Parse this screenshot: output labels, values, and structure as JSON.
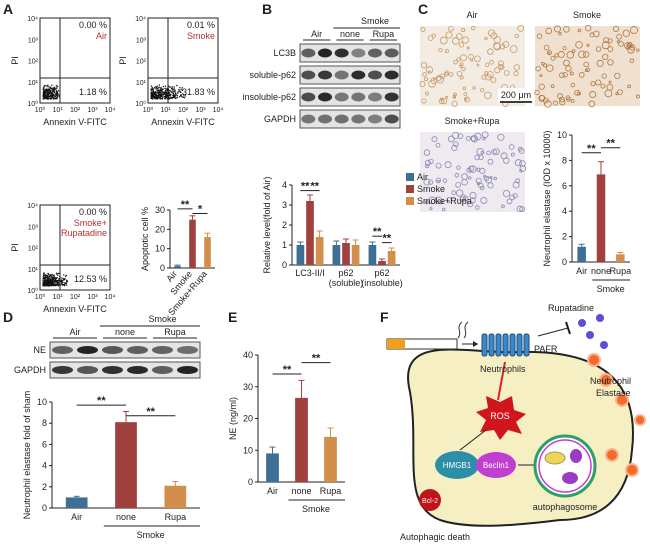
{
  "panel_letters": [
    "A",
    "B",
    "C",
    "D",
    "E",
    "F"
  ],
  "flow": {
    "y_label": "PI",
    "x_label": "Annexin V-FITC",
    "ticks": [
      "10⁰",
      "10¹",
      "10²",
      "10³",
      "10⁴"
    ],
    "plots": [
      {
        "upper_right": "0.00 %",
        "lower_right": "1.18 %",
        "label": [
          "Air"
        ]
      },
      {
        "upper_right": "0.01 %",
        "lower_right": "31.83 %",
        "label": [
          "Smoke"
        ]
      },
      {
        "upper_right": "0.00 %",
        "lower_right": "12.53 %",
        "label": [
          "Smoke+",
          "Rupatadine"
        ]
      }
    ]
  },
  "blot_b": {
    "group": "Smoke",
    "lanes": [
      "Air",
      "none",
      "Rupa"
    ],
    "rows": [
      "LC3B",
      "soluble-p62",
      "insoluble-p62",
      "GAPDH"
    ]
  },
  "blot_d": {
    "group": "Smoke",
    "lanes": [
      "Air",
      "none",
      "Rupa"
    ],
    "rows": [
      "NE",
      "GAPDH"
    ]
  },
  "micrographs": {
    "labels": [
      "Air",
      "Smoke",
      "Smoke+Rupa"
    ],
    "scale": "200 μm"
  },
  "diagram": {
    "drug": "Rupatadine",
    "receptor": "PAFR",
    "cell": "Neutrophils",
    "elastase": [
      "Neutrophil",
      "Elastase"
    ],
    "ros": "ROS",
    "hmgb1": "HMGB1",
    "beclin": "Beclin1",
    "bcl": "Bcl-2",
    "autophagosome": "autophagosome",
    "outcome": "Autophagic death"
  },
  "chart_data": [
    {
      "type": "bar",
      "y_label": "Apoptotic cell %",
      "categories": [
        "Air",
        "Smoke",
        "Smoke+Rupa"
      ],
      "values": [
        1,
        25,
        16
      ],
      "errors": [
        0.5,
        2,
        2
      ],
      "colors": [
        "#3f6f94",
        "#a0403f",
        "#d28e4b"
      ],
      "ylim": [
        0,
        30
      ],
      "yticks": [
        0,
        10,
        20,
        30
      ],
      "annotations": [
        "**",
        "*"
      ]
    },
    {
      "type": "bar",
      "y_label": "Relative level(fold of Air)",
      "categories": [
        [
          "LC3-II/I"
        ],
        [
          "p62",
          "(soluble)"
        ],
        [
          "p62",
          "(insoluble)"
        ]
      ],
      "series": [
        {
          "name": "Air",
          "color": "#3f6f94",
          "values": [
            1,
            1,
            1
          ],
          "errors": [
            0.15,
            0.2,
            0.15
          ]
        },
        {
          "name": "Smoke",
          "color": "#a0403f",
          "values": [
            3.2,
            1.1,
            0.2
          ],
          "errors": [
            0.3,
            0.2,
            0.1
          ]
        },
        {
          "name": "Smoke+Rupa",
          "color": "#d28e4b",
          "values": [
            1.4,
            1.0,
            0.7
          ],
          "errors": [
            0.3,
            0.25,
            0.15
          ]
        }
      ],
      "ylim": [
        0,
        4
      ],
      "yticks": [
        0,
        1,
        2,
        3,
        4
      ],
      "annotations": [
        "**",
        "**",
        "**",
        "**"
      ]
    },
    {
      "type": "bar",
      "y_label": "Neutrophil elastase (IOD x 10000)",
      "categories": [
        "Air",
        "none",
        "Rupa"
      ],
      "group_label": "Smoke",
      "values": [
        1.2,
        6.9,
        0.6
      ],
      "errors": [
        0.2,
        1.0,
        0.15
      ],
      "colors": [
        "#3f6f94",
        "#a0403f",
        "#d28e4b"
      ],
      "ylim": [
        0,
        10
      ],
      "yticks": [
        0,
        2,
        4,
        6,
        8,
        10
      ],
      "annotations": [
        "**",
        "**"
      ]
    },
    {
      "type": "bar",
      "y_label": "Neutrophil elastase fold of sham",
      "categories": [
        "Air",
        "none",
        "Rupa"
      ],
      "group_label": "Smoke",
      "values": [
        1,
        8.1,
        2.1
      ],
      "errors": [
        0.1,
        1.0,
        0.4
      ],
      "colors": [
        "#3f6f94",
        "#a0403f",
        "#d28e4b"
      ],
      "ylim": [
        0,
        10
      ],
      "yticks": [
        0,
        2,
        4,
        6,
        8,
        10
      ],
      "annotations": [
        "**",
        "**"
      ]
    },
    {
      "type": "bar",
      "y_label": "NE (ng/ml)",
      "categories": [
        "Air",
        "none",
        "Rupa"
      ],
      "group_label": "Smoke",
      "values": [
        9,
        26.5,
        14.2
      ],
      "errors": [
        2,
        5.5,
        2.8
      ],
      "colors": [
        "#3f6f94",
        "#a0403f",
        "#d28e4b"
      ],
      "ylim": [
        0,
        40
      ],
      "yticks": [
        0,
        10,
        20,
        30,
        40
      ],
      "annotations": [
        "**",
        "**"
      ]
    }
  ]
}
